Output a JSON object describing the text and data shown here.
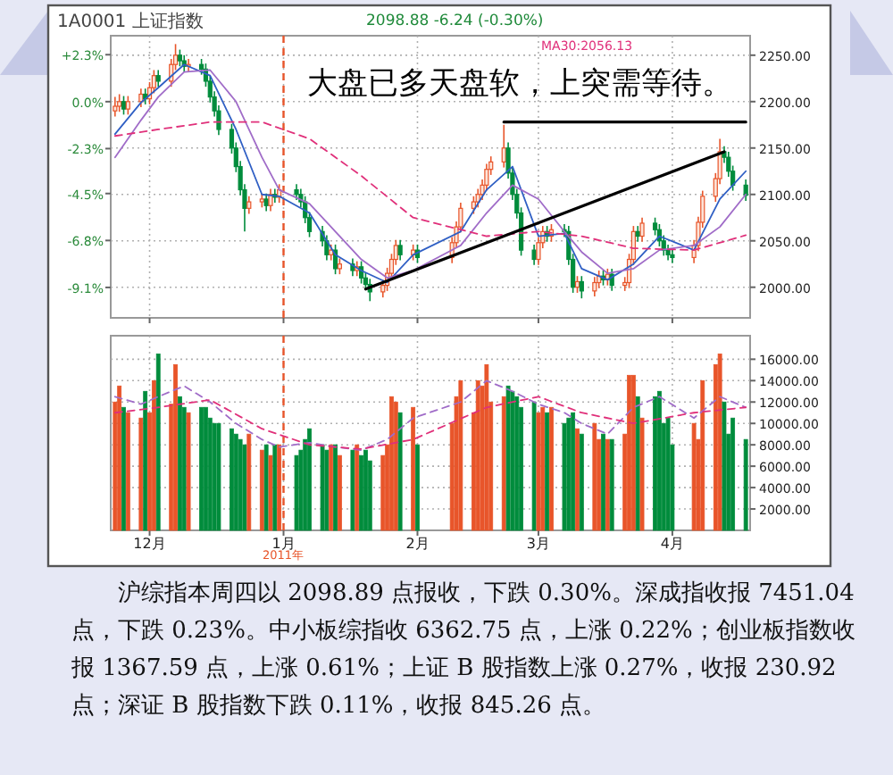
{
  "chart_data": [
    {
      "type": "candlestick",
      "title": "1A0001 上证指数",
      "subtitle": "2098.88 -6.24 (-0.30%)",
      "annotations": [
        "大盘已多天盘软，上突需等待。"
      ],
      "x": [
        "2010-11-23",
        "2010-11-24",
        "2010-11-25",
        "2010-11-26",
        "2010-11-29",
        "2010-11-30",
        "2010-12-01",
        "2010-12-02",
        "2010-12-03",
        "2010-12-06",
        "2010-12-07",
        "2010-12-08",
        "2010-12-09",
        "2010-12-10",
        "2010-12-13",
        "2010-12-14",
        "2010-12-15",
        "2010-12-16",
        "2010-12-17",
        "2010-12-20",
        "2010-12-21",
        "2010-12-22",
        "2010-12-23",
        "2010-12-24",
        "2010-12-27",
        "2010-12-28",
        "2010-12-29",
        "2010-12-30",
        "2010-12-31",
        "2011-01-04",
        "2011-01-05",
        "2011-01-06",
        "2011-01-07",
        "2011-01-10",
        "2011-01-11",
        "2011-01-12",
        "2011-01-13",
        "2011-01-14",
        "2011-01-17",
        "2011-01-18",
        "2011-01-19",
        "2011-01-20",
        "2011-01-21",
        "2011-01-24",
        "2011-01-25",
        "2011-01-26",
        "2011-01-27",
        "2011-01-28",
        "2011-01-31",
        "2011-02-01",
        "2011-02-09",
        "2011-02-10",
        "2011-02-11",
        "2011-02-14",
        "2011-02-15",
        "2011-02-16",
        "2011-02-17",
        "2011-02-18",
        "2011-02-21",
        "2011-02-22",
        "2011-02-23",
        "2011-02-24",
        "2011-02-25",
        "2011-02-28",
        "2011-03-01",
        "2011-03-02",
        "2011-03-03",
        "2011-03-04",
        "2011-03-07",
        "2011-03-08",
        "2011-03-09",
        "2011-03-10",
        "2011-03-11",
        "2011-03-14",
        "2011-03-15",
        "2011-03-16",
        "2011-03-17",
        "2011-03-18",
        "2011-03-21",
        "2011-03-22",
        "2011-03-23",
        "2011-03-24",
        "2011-03-25",
        "2011-03-28",
        "2011-03-29",
        "2011-03-30",
        "2011-03-31",
        "2011-04-01",
        "2011-04-06",
        "2011-04-07",
        "2011-04-08",
        "2011-04-11",
        "2011-04-12",
        "2011-04-13",
        "2011-04-14",
        "2011-04-15",
        "2011-04-18"
      ],
      "ohlc": [
        [
          2190,
          2205,
          2184,
          2195
        ],
        [
          2195,
          2208,
          2189,
          2200
        ],
        [
          2200,
          2206,
          2186,
          2192
        ],
        [
          2192,
          2206,
          2186,
          2200
        ],
        [
          2200,
          2214,
          2194,
          2208
        ],
        [
          2208,
          2214,
          2197,
          2203
        ],
        [
          2203,
          2221,
          2197,
          2215
        ],
        [
          2215,
          2234,
          2209,
          2228
        ],
        [
          2228,
          2234,
          2216,
          2222
        ],
        [
          2222,
          2246,
          2216,
          2240
        ],
        [
          2240,
          2262,
          2234,
          2250
        ],
        [
          2250,
          2256,
          2238,
          2244
        ],
        [
          2244,
          2250,
          2232,
          2238
        ],
        [
          2238,
          2246,
          2232,
          2240
        ],
        [
          2240,
          2246,
          2229,
          2235
        ],
        [
          2235,
          2241,
          2216,
          2222
        ],
        [
          2222,
          2228,
          2199,
          2205
        ],
        [
          2205,
          2211,
          2184,
          2190
        ],
        [
          2190,
          2196,
          2164,
          2170
        ],
        [
          2170,
          2176,
          2144,
          2150
        ],
        [
          2150,
          2156,
          2124,
          2130
        ],
        [
          2130,
          2136,
          2099,
          2105
        ],
        [
          2105,
          2111,
          2060,
          2085
        ],
        [
          2085,
          2098,
          2079,
          2092
        ],
        [
          2092,
          2101,
          2086,
          2095
        ],
        [
          2095,
          2101,
          2082,
          2088
        ],
        [
          2088,
          2106,
          2082,
          2100
        ],
        [
          2100,
          2106,
          2091,
          2097
        ],
        [
          2097,
          2111,
          2091,
          2105
        ],
        [
          2105,
          2111,
          2094,
          2100
        ],
        [
          2100,
          2106,
          2086,
          2092
        ],
        [
          2092,
          2098,
          2069,
          2075
        ],
        [
          2075,
          2081,
          2054,
          2060
        ],
        [
          2060,
          2066,
          2044,
          2050
        ],
        [
          2050,
          2056,
          2029,
          2035
        ],
        [
          2035,
          2046,
          2029,
          2040
        ],
        [
          2040,
          2046,
          2014,
          2020
        ],
        [
          2020,
          2031,
          2014,
          2025
        ],
        [
          2025,
          2031,
          2012,
          2018
        ],
        [
          2018,
          2028,
          2012,
          2022
        ],
        [
          2022,
          2028,
          2004,
          2010
        ],
        [
          2010,
          2016,
          1997,
          2003
        ],
        [
          2003,
          2009,
          1985,
          1995
        ],
        [
          1995,
          2008,
          1989,
          2002
        ],
        [
          2002,
          2021,
          1996,
          2015
        ],
        [
          2015,
          2036,
          2009,
          2030
        ],
        [
          2030,
          2051,
          2024,
          2045
        ],
        [
          2045,
          2051,
          2029,
          2035
        ],
        [
          2035,
          2046,
          2029,
          2040
        ],
        [
          2040,
          2046,
          2026,
          2032
        ],
        [
          2032,
          2054,
          2026,
          2048
        ],
        [
          2048,
          2071,
          2042,
          2065
        ],
        [
          2065,
          2091,
          2059,
          2085
        ],
        [
          2085,
          2098,
          2079,
          2092
        ],
        [
          2092,
          2106,
          2086,
          2100
        ],
        [
          2100,
          2116,
          2094,
          2110
        ],
        [
          2110,
          2133,
          2104,
          2127
        ],
        [
          2127,
          2141,
          2121,
          2135
        ],
        [
          2135,
          2175,
          2129,
          2150
        ],
        [
          2150,
          2156,
          2117,
          2123
        ],
        [
          2123,
          2129,
          2094,
          2100
        ],
        [
          2100,
          2106,
          2074,
          2080
        ],
        [
          2080,
          2086,
          2034,
          2040
        ],
        [
          2040,
          2046,
          2024,
          2030
        ],
        [
          2030,
          2054,
          2024,
          2048
        ],
        [
          2048,
          2066,
          2042,
          2060
        ],
        [
          2060,
          2066,
          2049,
          2055
        ],
        [
          2055,
          2068,
          2049,
          2062
        ],
        [
          2062,
          2068,
          2054,
          2060
        ],
        [
          2060,
          2066,
          2024,
          2030
        ],
        [
          2030,
          2036,
          1994,
          2000
        ],
        [
          2000,
          2012,
          1994,
          2006
        ],
        [
          2006,
          2012,
          1988,
          1996
        ],
        [
          1996,
          2011,
          1990,
          2005
        ],
        [
          2005,
          2018,
          1999,
          2012
        ],
        [
          2012,
          2018,
          2002,
          2008
        ],
        [
          2008,
          2020,
          2002,
          2014
        ],
        [
          2014,
          2020,
          1996,
          2002
        ],
        [
          2002,
          2011,
          1996,
          2005
        ],
        [
          2005,
          2036,
          1999,
          2030
        ],
        [
          2030,
          2066,
          2024,
          2060
        ],
        [
          2060,
          2066,
          2049,
          2055
        ],
        [
          2055,
          2075,
          2049,
          2069
        ],
        [
          2069,
          2075,
          2056,
          2062
        ],
        [
          2062,
          2068,
          2044,
          2050
        ],
        [
          2050,
          2056,
          2034,
          2040
        ],
        [
          2040,
          2046,
          2029,
          2035
        ],
        [
          2035,
          2041,
          2026,
          2032
        ],
        [
          2032,
          2051,
          2026,
          2045
        ],
        [
          2045,
          2076,
          2039,
          2070
        ],
        [
          2070,
          2104,
          2064,
          2098
        ],
        [
          2098,
          2123,
          2092,
          2117
        ],
        [
          2117,
          2160,
          2111,
          2146
        ],
        [
          2146,
          2152,
          2134,
          2140
        ],
        [
          2140,
          2146,
          2119,
          2125
        ],
        [
          2125,
          2131,
          2104,
          2110
        ],
        [
          2110,
          2116,
          2093,
          2099
        ]
      ],
      "series": [
        {
          "type": "line",
          "color": "#2f5fc4",
          "x": [
            "2010-11-23",
            "2010-11-29",
            "2010-12-03",
            "2010-12-09",
            "2010-12-15",
            "2010-12-21",
            "2010-12-27",
            "2010-12-31",
            "2011-01-07",
            "2011-01-13",
            "2011-01-19",
            "2011-01-25",
            "2011-01-31",
            "2011-02-11",
            "2011-02-17",
            "2011-02-23",
            "2011-03-01",
            "2011-03-07",
            "2011-03-11",
            "2011-03-17",
            "2011-03-23",
            "2011-03-29",
            "2011-04-06",
            "2011-04-12",
            "2011-04-18"
          ],
          "values": [
            2165,
            2199,
            2215,
            2240,
            2228,
            2170,
            2100,
            2098,
            2080,
            2035,
            2018,
            2005,
            2035,
            2060,
            2105,
            2130,
            2055,
            2058,
            2020,
            2008,
            2025,
            2055,
            2040,
            2095,
            2125
          ]
        },
        {
          "type": "line",
          "color": "#a06cc8",
          "x": [
            "2010-11-23",
            "2010-11-29",
            "2010-12-03",
            "2010-12-09",
            "2010-12-15",
            "2010-12-21",
            "2010-12-27",
            "2010-12-31",
            "2011-01-07",
            "2011-01-13",
            "2011-01-19",
            "2011-01-25",
            "2011-01-31",
            "2011-02-11",
            "2011-02-17",
            "2011-02-23",
            "2011-03-01",
            "2011-03-07",
            "2011-03-11",
            "2011-03-17",
            "2011-03-23",
            "2011-03-29",
            "2011-04-06",
            "2011-04-12",
            "2011-04-18"
          ],
          "values": [
            2140,
            2180,
            2205,
            2232,
            2234,
            2200,
            2140,
            2105,
            2090,
            2060,
            2030,
            2010,
            2018,
            2045,
            2080,
            2110,
            2095,
            2060,
            2038,
            2015,
            2020,
            2040,
            2045,
            2065,
            2100
          ]
        },
        {
          "type": "line",
          "name": "MA30:2056.13",
          "color": "#e0307a",
          "line_style": "dashed",
          "x": [
            "2010-11-23",
            "2010-12-03",
            "2010-12-15",
            "2010-12-27",
            "2011-01-07",
            "2011-01-19",
            "2011-01-31",
            "2011-02-17",
            "2011-03-01",
            "2011-03-11",
            "2011-03-23",
            "2011-04-06",
            "2011-04-18"
          ],
          "values": [
            2163,
            2170,
            2178,
            2178,
            2160,
            2120,
            2075,
            2055,
            2060,
            2055,
            2042,
            2040,
            2056
          ]
        },
        {
          "type": "line",
          "color": "#000000",
          "x": [
            "2011-01-20",
            "2011-04-13"
          ],
          "values": [
            1998,
            2146
          ]
        },
        {
          "type": "line",
          "color": "#000000",
          "x": [
            "2011-02-21",
            "2011-04-18"
          ],
          "values": [
            2178,
            2178
          ]
        }
      ],
      "xlim": [
        "2010-11-22",
        "2011-04-19"
      ],
      "xticks": [
        {
          "value": "2010-12-01",
          "label": null
        },
        {
          "value": "2011-01-01",
          "label": null
        },
        {
          "value": "2011-02-01",
          "label": null
        },
        {
          "value": "2011-03-01",
          "label": null
        },
        {
          "value": "2011-04-01",
          "label": null
        }
      ],
      "ylim": [
        1967,
        2271
      ],
      "yticks": [
        {
          "value": 2000,
          "label": "2000.00"
        },
        {
          "value": 2050,
          "label": "2050.00"
        },
        {
          "value": 2100,
          "label": "2100.00"
        },
        {
          "value": 2150,
          "label": "2150.00"
        },
        {
          "value": 2200,
          "label": "2200.00"
        },
        {
          "value": 2250,
          "label": "2250.00"
        }
      ],
      "y2lim": [
        -10.59,
        3.23
      ],
      "y2ticks": [
        {
          "value": -9.1,
          "label": "-9.1%"
        },
        {
          "value": -6.8,
          "label": "-6.8%"
        },
        {
          "value": -4.5,
          "label": "-4.5%"
        },
        {
          "value": -2.3,
          "label": "-2.3%"
        },
        {
          "value": 0,
          "label": "0.0%"
        },
        {
          "value": 2.3,
          "label": "+2.3%"
        }
      ],
      "tick_labels": "y",
      "grid": true,
      "ref_lines": [
        {
          "axis": "x",
          "value": "2011-01-01",
          "color": "#e8552a",
          "line_style": "dashed"
        }
      ]
    },
    {
      "type": "bar",
      "annotations": [
        "2011年",
        "沪综指本周四以 2098.89 点报收，下跌 0.30%。深成指收报 7451.04 点，下跌 0.23%。中小板综指收 6362.75 点，上涨 0.22%；创业板指数收报 1367.59 点，上涨 0.61%；上证 B 股指数上涨 0.27%，收报 230.92 点；深证 B 股指数下跌 0.11%，收报 845.26 点。"
      ],
      "series": [
        {
          "type": "bar",
          "x": [
            "2010-11-23",
            "2010-11-24",
            "2010-11-25",
            "2010-11-26",
            "2010-11-29",
            "2010-11-30",
            "2010-12-01",
            "2010-12-02",
            "2010-12-03",
            "2010-12-06",
            "2010-12-07",
            "2010-12-08",
            "2010-12-09",
            "2010-12-10",
            "2010-12-13",
            "2010-12-14",
            "2010-12-15",
            "2010-12-16",
            "2010-12-17",
            "2010-12-20",
            "2010-12-21",
            "2010-12-22",
            "2010-12-23",
            "2010-12-24",
            "2010-12-27",
            "2010-12-28",
            "2010-12-29",
            "2010-12-30",
            "2010-12-31",
            "2011-01-04",
            "2011-01-05",
            "2011-01-06",
            "2011-01-07",
            "2011-01-10",
            "2011-01-11",
            "2011-01-12",
            "2011-01-13",
            "2011-01-14",
            "2011-01-17",
            "2011-01-18",
            "2011-01-19",
            "2011-01-20",
            "2011-01-21",
            "2011-01-24",
            "2011-01-25",
            "2011-01-26",
            "2011-01-27",
            "2011-01-28",
            "2011-01-31",
            "2011-02-01",
            "2011-02-09",
            "2011-02-10",
            "2011-02-11",
            "2011-02-14",
            "2011-02-15",
            "2011-02-16",
            "2011-02-17",
            "2011-02-18",
            "2011-02-21",
            "2011-02-22",
            "2011-02-23",
            "2011-02-24",
            "2011-02-25",
            "2011-02-28",
            "2011-03-01",
            "2011-03-02",
            "2011-03-03",
            "2011-03-04",
            "2011-03-07",
            "2011-03-08",
            "2011-03-09",
            "2011-03-10",
            "2011-03-11",
            "2011-03-14",
            "2011-03-15",
            "2011-03-16",
            "2011-03-17",
            "2011-03-18",
            "2011-03-21",
            "2011-03-22",
            "2011-03-23",
            "2011-03-24",
            "2011-03-25",
            "2011-03-28",
            "2011-03-29",
            "2011-03-30",
            "2011-03-31",
            "2011-04-01",
            "2011-04-06",
            "2011-04-07",
            "2011-04-08",
            "2011-04-11",
            "2011-04-12",
            "2011-04-13",
            "2011-04-14",
            "2011-04-15",
            "2011-04-18"
          ],
          "values": [
            12000,
            13500,
            11500,
            11000,
            10500,
            13000,
            11000,
            14000,
            16500,
            11800,
            15500,
            12500,
            11500,
            11000,
            11500,
            11500,
            10500,
            10000,
            10000,
            9500,
            9000,
            8500,
            8000,
            9000,
            7500,
            8000,
            7000,
            8000,
            8000,
            7000,
            7500,
            8500,
            9500,
            8000,
            7500,
            8000,
            8000,
            7000,
            7500,
            8000,
            7000,
            7500,
            6500,
            7000,
            8000,
            12500,
            12000,
            11000,
            11500,
            8000,
            10000,
            12500,
            14000,
            11000,
            14000,
            13500,
            15500,
            12000,
            12500,
            13500,
            13000,
            12500,
            11500,
            12000,
            11000,
            11500,
            11000,
            11500,
            10000,
            10500,
            11000,
            9500,
            9000,
            10000,
            8500,
            9000,
            8500,
            8500,
            9000,
            14500,
            14500,
            12500,
            10500,
            12500,
            13000,
            10000,
            10500,
            8000,
            10000,
            8500,
            14000,
            15500,
            16500,
            12000,
            9000,
            10500,
            8500
          ],
          "colors": [
            "#e8552a",
            "#e8552a",
            "#008c3c",
            "#e8552a",
            "#e8552a",
            "#008c3c",
            "#e8552a",
            "#e8552a",
            "#008c3c",
            "#e8552a",
            "#e8552a",
            "#008c3c",
            "#008c3c",
            "#e8552a",
            "#008c3c",
            "#008c3c",
            "#008c3c",
            "#008c3c",
            "#008c3c",
            "#008c3c",
            "#008c3c",
            "#008c3c",
            "#008c3c",
            "#e8552a",
            "#e8552a",
            "#008c3c",
            "#e8552a",
            "#008c3c",
            "#e8552a",
            "#008c3c",
            "#008c3c",
            "#008c3c",
            "#008c3c",
            "#008c3c",
            "#008c3c",
            "#e8552a",
            "#008c3c",
            "#e8552a",
            "#008c3c",
            "#e8552a",
            "#008c3c",
            "#008c3c",
            "#008c3c",
            "#e8552a",
            "#e8552a",
            "#e8552a",
            "#e8552a",
            "#008c3c",
            "#e8552a",
            "#008c3c",
            "#e8552a",
            "#e8552a",
            "#e8552a",
            "#e8552a",
            "#e8552a",
            "#e8552a",
            "#e8552a",
            "#e8552a",
            "#e8552a",
            "#008c3c",
            "#008c3c",
            "#008c3c",
            "#008c3c",
            "#008c3c",
            "#e8552a",
            "#e8552a",
            "#008c3c",
            "#e8552a",
            "#008c3c",
            "#008c3c",
            "#008c3c",
            "#e8552a",
            "#008c3c",
            "#e8552a",
            "#e8552a",
            "#008c3c",
            "#e8552a",
            "#008c3c",
            "#e8552a",
            "#e8552a",
            "#e8552a",
            "#008c3c",
            "#e8552a",
            "#008c3c",
            "#008c3c",
            "#008c3c",
            "#008c3c",
            "#008c3c",
            "#e8552a",
            "#e8552a",
            "#e8552a",
            "#e8552a",
            "#e8552a",
            "#008c3c",
            "#008c3c",
            "#008c3c",
            "#008c3c"
          ]
        },
        {
          "type": "line",
          "color": "#a06cc8",
          "line_style": "dashed",
          "x": [
            "2010-11-23",
            "2010-11-29",
            "2010-12-03",
            "2010-12-09",
            "2010-12-15",
            "2010-12-21",
            "2010-12-27",
            "2010-12-31",
            "2011-01-07",
            "2011-01-13",
            "2011-01-19",
            "2011-01-25",
            "2011-01-31",
            "2011-02-11",
            "2011-02-17",
            "2011-02-23",
            "2011-03-01",
            "2011-03-07",
            "2011-03-11",
            "2011-03-17",
            "2011-03-23",
            "2011-03-29",
            "2011-04-06",
            "2011-04-12",
            "2011-04-18"
          ],
          "values": [
            12500,
            11800,
            12500,
            13500,
            12000,
            10000,
            8500,
            7800,
            8200,
            7800,
            7500,
            8500,
            10500,
            12000,
            14000,
            13000,
            11800,
            11000,
            10000,
            9000,
            11500,
            12500,
            10500,
            12500,
            11500
          ]
        },
        {
          "type": "line",
          "color": "#e0307a",
          "line_style": "dashed",
          "x": [
            "2010-11-23",
            "2010-12-03",
            "2010-12-15",
            "2010-12-27",
            "2011-01-07",
            "2011-01-19",
            "2011-01-31",
            "2011-02-17",
            "2011-03-01",
            "2011-03-11",
            "2011-03-23",
            "2011-04-06",
            "2011-04-18"
          ],
          "values": [
            11000,
            11500,
            12200,
            9500,
            8000,
            7600,
            8500,
            11500,
            12500,
            11000,
            10000,
            11000,
            11500
          ]
        }
      ],
      "xlim": [
        "2010-11-22",
        "2011-04-19"
      ],
      "xticks": [
        {
          "value": "2010-12-01",
          "label": "12月"
        },
        {
          "value": "2011-01-01",
          "label": "1月"
        },
        {
          "value": "2011-02-01",
          "label": "2月"
        },
        {
          "value": "2011-03-01",
          "label": "3月"
        },
        {
          "value": "2011-04-01",
          "label": "4月"
        }
      ],
      "ylim": [
        0,
        18200
      ],
      "yticks": [
        {
          "value": 2000,
          "label": "2000.00"
        },
        {
          "value": 4000,
          "label": "4000.00"
        },
        {
          "value": 6000,
          "label": "6000.00"
        },
        {
          "value": 8000,
          "label": "8000.00"
        },
        {
          "value": 10000,
          "label": "10000.00"
        },
        {
          "value": 12000,
          "label": "12000.00"
        },
        {
          "value": 14000,
          "label": "14000.00"
        },
        {
          "value": 16000,
          "label": "16000.00"
        }
      ],
      "grid": true,
      "ref_lines": [
        {
          "axis": "x",
          "value": "2011-01-01",
          "color": "#e8552a",
          "line_style": "dashed"
        }
      ]
    }
  ]
}
